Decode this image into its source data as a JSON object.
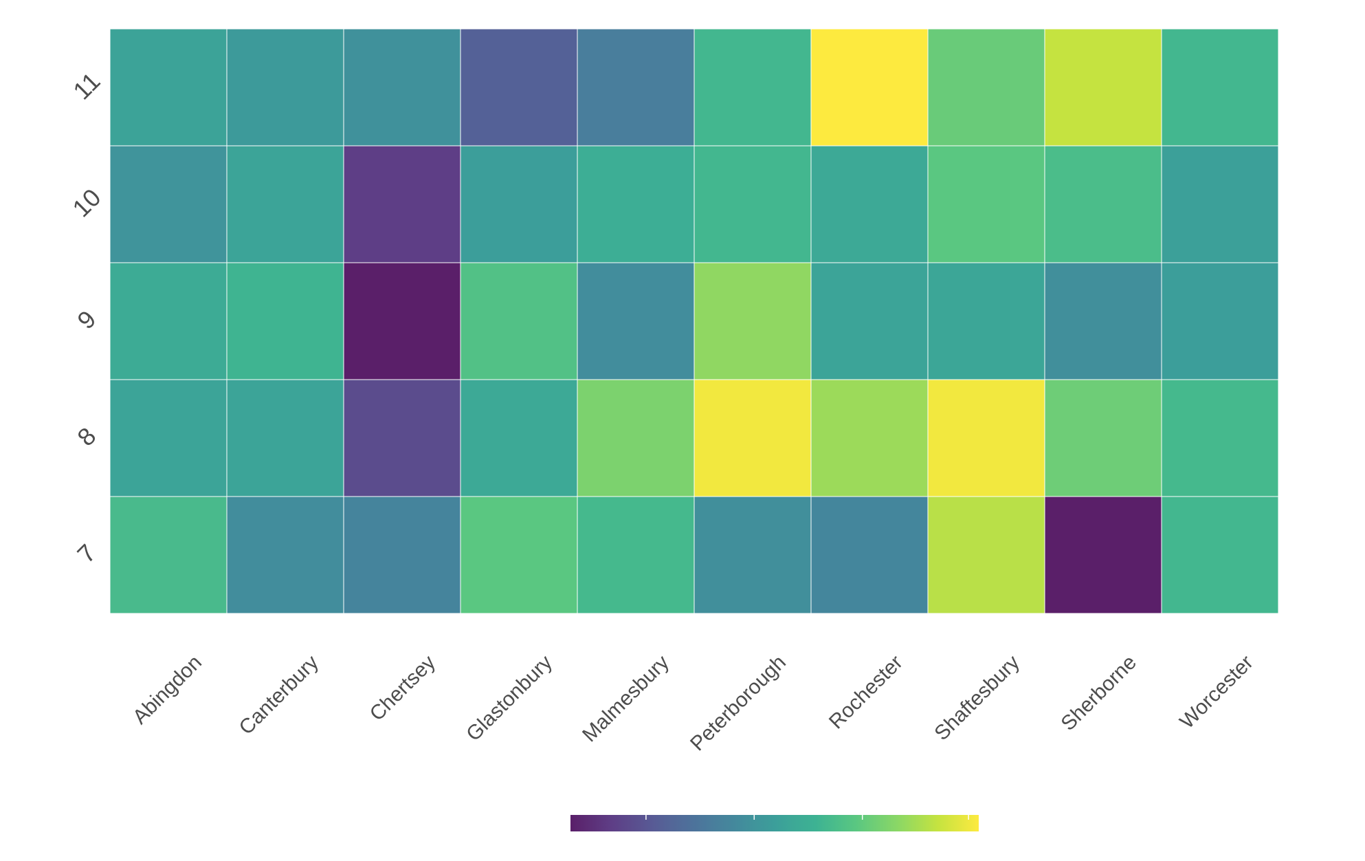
{
  "chart_data": {
    "type": "heatmap",
    "title": "",
    "xlabel": "",
    "ylabel": "",
    "categories": [
      "Abingdon",
      "Canterbury",
      "Chertsey",
      "Glastonbury",
      "Malmesbury",
      "Peterborough",
      "Rochester",
      "Shaftesbury",
      "Sherborne",
      "Worcester"
    ],
    "y_categories": [
      "7",
      "8",
      "9",
      "10",
      "11"
    ],
    "colormap": "viridis",
    "colorbar": {
      "orientation": "horizontal",
      "placement": "bottom",
      "labels_visible": false,
      "range": [
        0,
        1
      ]
    },
    "grid": false,
    "values": [
      [
        0.64,
        0.42,
        0.38,
        0.7,
        0.63,
        0.43,
        0.39,
        0.88,
        0.0,
        0.62
      ],
      [
        0.53,
        0.53,
        0.15,
        0.55,
        0.77,
        0.98,
        0.83,
        0.98,
        0.74,
        0.63
      ],
      [
        0.56,
        0.61,
        0.0,
        0.67,
        0.42,
        0.81,
        0.53,
        0.54,
        0.43,
        0.5
      ],
      [
        0.45,
        0.53,
        0.1,
        0.5,
        0.58,
        0.62,
        0.55,
        0.7,
        0.65,
        0.51
      ],
      [
        0.52,
        0.48,
        0.44,
        0.23,
        0.35,
        0.62,
        1.0,
        0.73,
        0.9,
        0.62
      ]
    ]
  }
}
